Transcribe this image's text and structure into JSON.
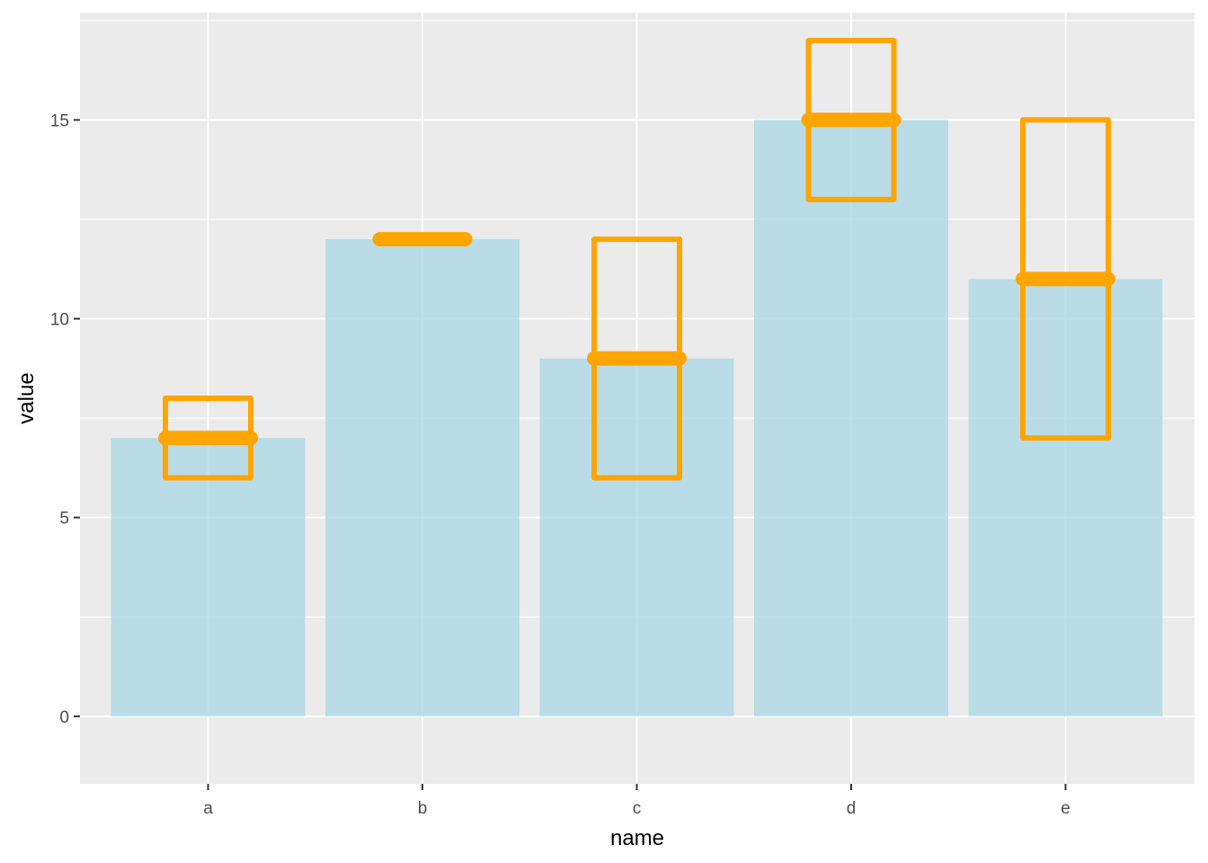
{
  "chart_data": {
    "type": "bar",
    "title": "",
    "xlabel": "name",
    "ylabel": "value",
    "categories": [
      "a",
      "b",
      "c",
      "d",
      "e"
    ],
    "values": [
      7,
      12,
      9,
      15,
      11
    ],
    "error_ranges": [
      {
        "low": 6,
        "high": 8
      },
      {
        "low": 12,
        "high": 12
      },
      {
        "low": 6,
        "high": 12
      },
      {
        "low": 13,
        "high": 17
      },
      {
        "low": 7,
        "high": 15
      }
    ],
    "ylim": [
      -1.7,
      17.7
    ],
    "yticks": [
      0,
      5,
      10,
      15
    ],
    "ytick_labels": [
      "0",
      "5",
      "10",
      "15"
    ],
    "grid": true,
    "colors": {
      "bar_fill": "#add8e6",
      "crossbar": "#ffa500",
      "panel": "#ebebeb",
      "grid": "#ffffff"
    }
  }
}
